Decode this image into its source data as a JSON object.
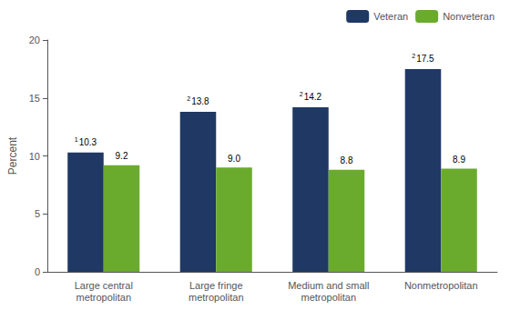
{
  "chart_data": {
    "type": "bar",
    "categories": [
      "Large central\nmetropolitan",
      "Large fringe\nmetropolitan",
      "Medium and small\nmetropolitan",
      "Nonmetropolitan"
    ],
    "series": [
      {
        "name": "Veteran",
        "color": "#1F3864",
        "values": [
          10.3,
          13.8,
          14.2,
          17.5
        ],
        "superscripts": [
          "1",
          "2",
          "2",
          "2"
        ]
      },
      {
        "name": "Nonveteran",
        "color": "#6AAB2E",
        "values": [
          9.2,
          9.0,
          8.8,
          8.9
        ],
        "value_labels": [
          "9.2",
          "9.0",
          "8.8",
          "8.9"
        ]
      }
    ],
    "ylabel": "Percent",
    "ylim": [
      0,
      20
    ],
    "yticks": [
      0,
      5,
      10,
      15,
      20
    ],
    "grid": false,
    "legend": "top-right",
    "data_labels": true
  }
}
